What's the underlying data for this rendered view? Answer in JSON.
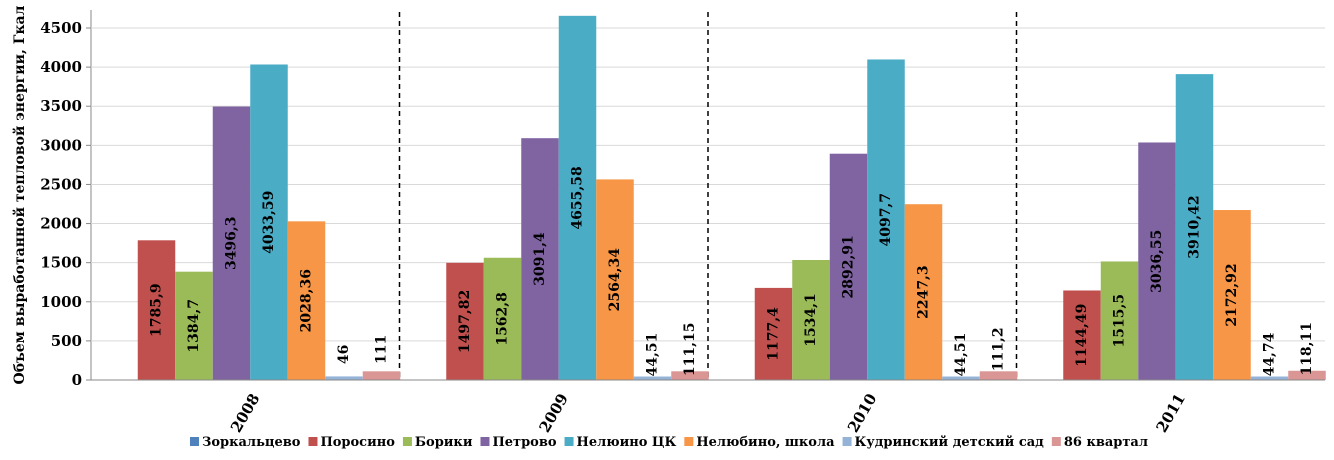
{
  "chart_data": {
    "type": "bar",
    "ylabel": "Объем выработанной тепловой энергии, Гкал",
    "xlabel": "",
    "ylim": [
      0,
      4500
    ],
    "yticks": [
      0,
      500,
      1000,
      1500,
      2000,
      2500,
      3000,
      3500,
      4000,
      4500
    ],
    "categories": [
      "2008",
      "2009",
      "2010",
      "2011"
    ],
    "legend_position": "bottom",
    "series": [
      {
        "name": "Зоркальцево",
        "color": "#4F81BD",
        "values": [
          0,
          0,
          0,
          0
        ],
        "labels": [
          "",
          "",
          "",
          ""
        ]
      },
      {
        "name": "Поросино",
        "color": "#C0504D",
        "values": [
          1785.9,
          1497.82,
          1177.4,
          1144.49
        ],
        "labels": [
          "1785,9",
          "1497,82",
          "1177,4",
          "1144,49"
        ]
      },
      {
        "name": "Борики",
        "color": "#9BBB59",
        "values": [
          1384.7,
          1562.8,
          1534.1,
          1515.5
        ],
        "labels": [
          "1384,7",
          "1562,8",
          "1534,1",
          "1515,5"
        ]
      },
      {
        "name": "Петрово",
        "color": "#8064A2",
        "values": [
          3496.3,
          3091.4,
          2892.91,
          3036.55
        ],
        "labels": [
          "3496,3",
          "3091,4",
          "2892,91",
          "3036,55"
        ]
      },
      {
        "name": "Нелюино ЦК",
        "color": "#4BACC6",
        "values": [
          4033.59,
          4655.58,
          4097.7,
          3910.42
        ],
        "labels": [
          "4033,59",
          "4655,58",
          "4097,7",
          "3910,42"
        ]
      },
      {
        "name": "Нелюбино, школа",
        "color": "#F79646",
        "values": [
          2028.36,
          2564.34,
          2247.3,
          2172.92
        ],
        "labels": [
          "2028,36",
          "2564,34",
          "2247,3",
          "2172,92"
        ]
      },
      {
        "name": "Кудринский детский сад",
        "color": "#95B3D7",
        "values": [
          46,
          44.51,
          44.51,
          44.74
        ],
        "labels": [
          "46",
          "44,51",
          "44,51",
          "44,74"
        ]
      },
      {
        "name": "86 квартал",
        "color": "#D99694",
        "values": [
          111,
          111.15,
          111.2,
          118.11
        ],
        "labels": [
          "111",
          "111,15",
          "111,2",
          "118,11"
        ]
      }
    ]
  }
}
